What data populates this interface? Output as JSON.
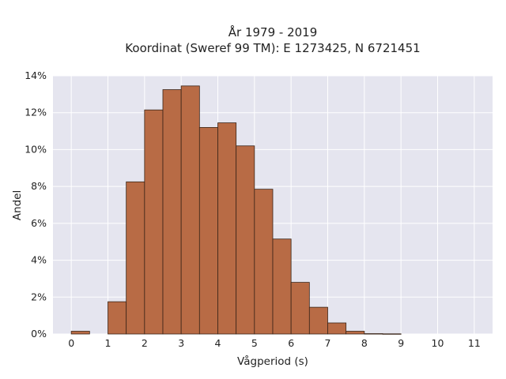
{
  "chart_data": {
    "type": "bar",
    "title": "År 1979 - 2019",
    "subtitle": "Koordinat (Sweref 99 TM): E 1273425, N 6721451",
    "xlabel": "Vågperiod (s)",
    "ylabel": "Andel",
    "bin_width": 0.5,
    "x": [
      0,
      0.5,
      1,
      1.5,
      2,
      2.5,
      3,
      3.5,
      4,
      4.5,
      5,
      5.5,
      6,
      6.5,
      7,
      7.5,
      8,
      8.5
    ],
    "values": [
      0.15,
      0,
      1.75,
      8.25,
      12.15,
      13.25,
      13.45,
      11.2,
      11.45,
      10.2,
      7.85,
      5.15,
      2.8,
      1.45,
      0.6,
      0.15,
      0.02,
      0.01
    ],
    "xlim": [
      -0.5,
      11.5
    ],
    "ylim": [
      0,
      14
    ],
    "x_ticks": [
      0,
      1,
      2,
      3,
      4,
      5,
      6,
      7,
      8,
      9,
      10,
      11
    ],
    "y_ticks": [
      0,
      2,
      4,
      6,
      8,
      10,
      12,
      14
    ],
    "y_tick_labels": [
      "0%",
      "2%",
      "4%",
      "6%",
      "8%",
      "10%",
      "12%",
      "14%"
    ],
    "bar_color": "#b86b45",
    "edge_color": "#3a2518",
    "plot_background": "#e5e5ef",
    "grid": true,
    "legend": "none"
  }
}
